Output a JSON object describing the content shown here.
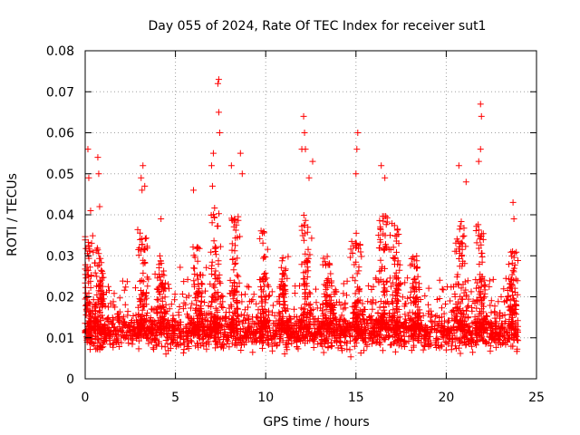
{
  "chart_data": {
    "type": "scatter",
    "title": "Day 055 of 2024, Rate Of TEC Index for receiver sut1",
    "xlabel": "GPS time / hours",
    "ylabel": "ROTI / TECUs",
    "xlim": [
      0,
      25
    ],
    "ylim": [
      0,
      0.08
    ],
    "xticks": [
      "0",
      "5",
      "10",
      "15",
      "20",
      "25"
    ],
    "yticks": [
      "0",
      "0.01",
      "0.02",
      "0.03",
      "0.04",
      "0.05",
      "0.06",
      "0.07",
      "0.08"
    ],
    "grid": true,
    "marker": "+",
    "color": "#ff0000",
    "series": [
      {
        "name": "ROTI",
        "description": "Dense cloud of ROTI samples from 0 to 24 h, bulk between 0.005 and 0.025 TECU/s",
        "x_range": [
          0,
          24
        ],
        "bulk_range": [
          0.003,
          0.025
        ],
        "peaks": [
          {
            "x": 0.15,
            "y": 0.056
          },
          {
            "x": 0.2,
            "y": 0.049
          },
          {
            "x": 0.3,
            "y": 0.041
          },
          {
            "x": 0.7,
            "y": 0.054
          },
          {
            "x": 0.75,
            "y": 0.05
          },
          {
            "x": 0.8,
            "y": 0.042
          },
          {
            "x": 3.1,
            "y": 0.049
          },
          {
            "x": 3.2,
            "y": 0.052
          },
          {
            "x": 3.15,
            "y": 0.046
          },
          {
            "x": 3.3,
            "y": 0.047
          },
          {
            "x": 4.2,
            "y": 0.039
          },
          {
            "x": 6.0,
            "y": 0.046
          },
          {
            "x": 7.0,
            "y": 0.052
          },
          {
            "x": 7.1,
            "y": 0.055
          },
          {
            "x": 7.05,
            "y": 0.047
          },
          {
            "x": 7.35,
            "y": 0.072
          },
          {
            "x": 7.4,
            "y": 0.073
          },
          {
            "x": 7.4,
            "y": 0.065
          },
          {
            "x": 7.45,
            "y": 0.06
          },
          {
            "x": 8.1,
            "y": 0.052
          },
          {
            "x": 8.6,
            "y": 0.055
          },
          {
            "x": 8.7,
            "y": 0.05
          },
          {
            "x": 12.0,
            "y": 0.056
          },
          {
            "x": 12.1,
            "y": 0.064
          },
          {
            "x": 12.15,
            "y": 0.06
          },
          {
            "x": 12.2,
            "y": 0.056
          },
          {
            "x": 12.6,
            "y": 0.053
          },
          {
            "x": 12.4,
            "y": 0.049
          },
          {
            "x": 15.1,
            "y": 0.06
          },
          {
            "x": 15.05,
            "y": 0.056
          },
          {
            "x": 15.0,
            "y": 0.05
          },
          {
            "x": 16.4,
            "y": 0.052
          },
          {
            "x": 16.6,
            "y": 0.049
          },
          {
            "x": 20.7,
            "y": 0.052
          },
          {
            "x": 21.9,
            "y": 0.067
          },
          {
            "x": 21.95,
            "y": 0.064
          },
          {
            "x": 21.9,
            "y": 0.056
          },
          {
            "x": 21.8,
            "y": 0.053
          },
          {
            "x": 21.1,
            "y": 0.048
          },
          {
            "x": 23.7,
            "y": 0.043
          },
          {
            "x": 23.75,
            "y": 0.039
          }
        ],
        "bursts": [
          {
            "x": 0.2,
            "height": 0.035
          },
          {
            "x": 0.8,
            "height": 0.032
          },
          {
            "x": 3.2,
            "height": 0.037
          },
          {
            "x": 4.2,
            "height": 0.03
          },
          {
            "x": 6.3,
            "height": 0.033
          },
          {
            "x": 7.2,
            "height": 0.042
          },
          {
            "x": 8.3,
            "height": 0.04
          },
          {
            "x": 9.9,
            "height": 0.038
          },
          {
            "x": 11.0,
            "height": 0.03
          },
          {
            "x": 12.2,
            "height": 0.04
          },
          {
            "x": 13.5,
            "height": 0.03
          },
          {
            "x": 15.0,
            "height": 0.036
          },
          {
            "x": 16.5,
            "height": 0.04
          },
          {
            "x": 17.2,
            "height": 0.038
          },
          {
            "x": 18.3,
            "height": 0.03
          },
          {
            "x": 20.8,
            "height": 0.04
          },
          {
            "x": 21.9,
            "height": 0.038
          },
          {
            "x": 23.7,
            "height": 0.032
          }
        ]
      }
    ]
  }
}
